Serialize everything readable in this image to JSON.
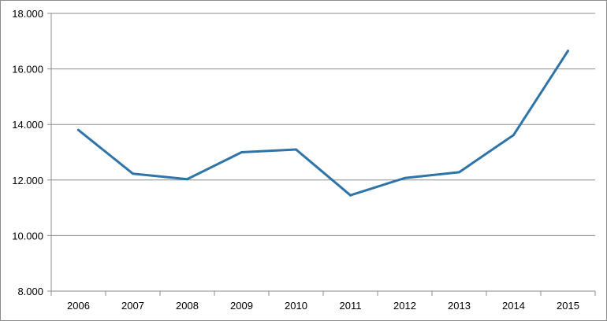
{
  "chart_data": {
    "type": "line",
    "title": "",
    "xlabel": "",
    "ylabel": "",
    "categories": [
      "2006",
      "2007",
      "2008",
      "2009",
      "2010",
      "2011",
      "2012",
      "2013",
      "2014",
      "2015"
    ],
    "series": [
      {
        "values": [
          13800,
          12230,
          12030,
          13000,
          13100,
          11450,
          12070,
          12280,
          13620,
          16650
        ],
        "color": "#2e74a8"
      }
    ],
    "y_ticks": [
      "8.000",
      "10.000",
      "12.000",
      "14.000",
      "16.000",
      "18.000"
    ],
    "ylim": [
      8000,
      18000
    ],
    "grid": "horizontal",
    "legend": "none"
  }
}
